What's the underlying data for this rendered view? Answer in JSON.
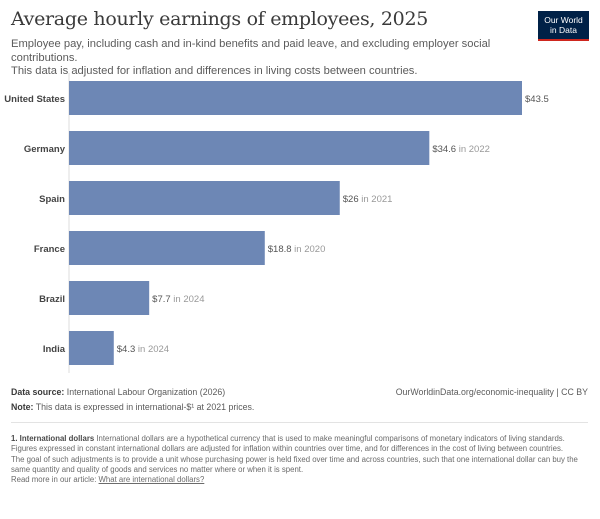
{
  "header": {
    "title": "Average hourly earnings of employees, 2025",
    "subtitle_1": "Employee pay, including cash and in-kind benefits and paid leave, and excluding employer social contributions.",
    "subtitle_2": "This data is adjusted for inflation and differences in living costs between countries.",
    "logo_1": "Our World",
    "logo_2": "in Data"
  },
  "chart_data": {
    "type": "bar",
    "orientation": "horizontal",
    "categories": [
      "United States",
      "Germany",
      "Spain",
      "France",
      "Brazil",
      "India"
    ],
    "values": [
      43.5,
      34.6,
      26,
      18.8,
      7.7,
      4.3
    ],
    "value_labels": [
      "$43.5",
      "$34.6",
      "$26",
      "$18.8",
      "$7.7",
      "$4.3"
    ],
    "year_notes": [
      "",
      " in 2022",
      " in 2021",
      " in 2020",
      " in 2024",
      " in 2024"
    ],
    "xlim": [
      0,
      43.5
    ],
    "bar_color": "#6d87b5",
    "grid": false
  },
  "footer": {
    "source_label": "Data source:",
    "source": "International Labour Organization (2026)",
    "url": "OurWorldinData.org/economic-inequality | CC BY",
    "note_label": "Note:",
    "note": "This data is expressed in international-$¹ at 2021 prices."
  },
  "notes": {
    "title": "1. International dollars",
    "p1": "International dollars are a hypothetical currency that is used to make meaningful comparisons of monetary indicators of living standards.",
    "p2": "Figures expressed in constant international dollars are adjusted for inflation within countries over time, and for differences in the cost of living between countries.",
    "p3": "The goal of such adjustments is to provide a unit whose purchasing power is held fixed over time and across countries, such that one international dollar can buy the same quantity and quality of goods and services no matter where or when it is spent.",
    "read_more": "Read more in our article:",
    "link": "What are international dollars?"
  }
}
